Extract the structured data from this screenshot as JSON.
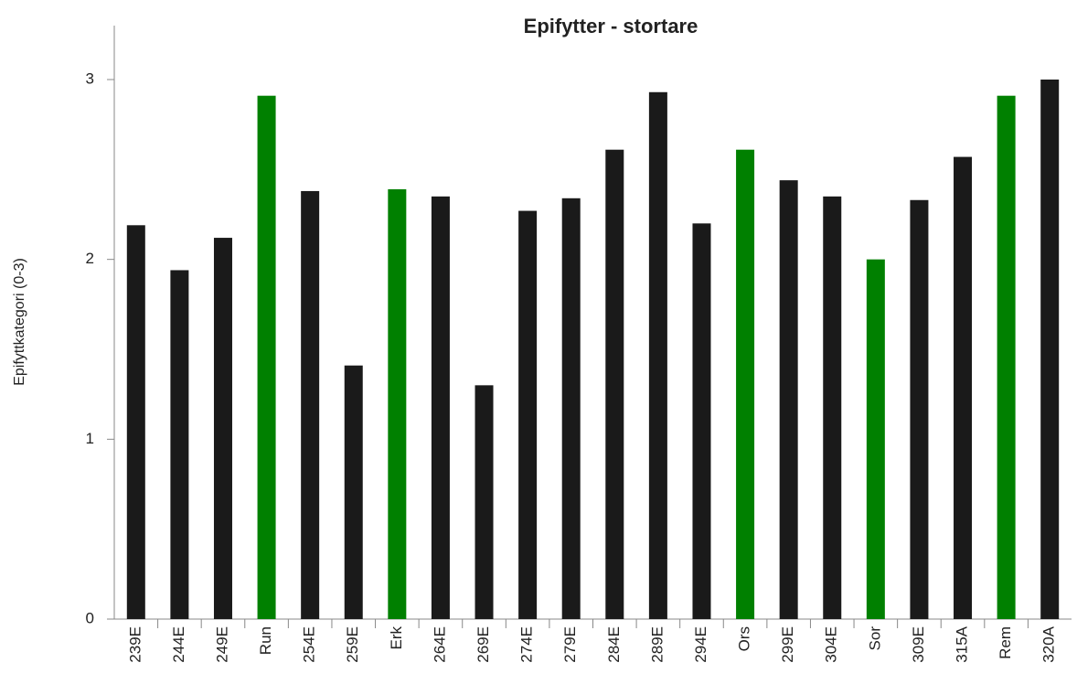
{
  "chart_data": {
    "type": "bar",
    "title": "Epifytter - stortare",
    "y_label": "Epifyttkategori  (0-3)",
    "categories": [
      "239E",
      "244E",
      "249E",
      "Run",
      "254E",
      "259E",
      "Erk",
      "264E",
      "269E",
      "274E",
      "279E",
      "284E",
      "289E",
      "294E",
      "Ors",
      "299E",
      "304E",
      "Sor",
      "309E",
      "315A",
      "Rem",
      "320A"
    ],
    "values": [
      2.19,
      1.94,
      2.12,
      2.91,
      2.38,
      1.41,
      2.39,
      2.35,
      1.3,
      2.27,
      2.34,
      2.61,
      2.93,
      2.2,
      2.61,
      2.44,
      2.35,
      2.0,
      2.33,
      2.57,
      2.91,
      3.0
    ],
    "colors": [
      "#1a1a1a",
      "#1a1a1a",
      "#1a1a1a",
      "#008000",
      "#1a1a1a",
      "#1a1a1a",
      "#008000",
      "#1a1a1a",
      "#1a1a1a",
      "#1a1a1a",
      "#1a1a1a",
      "#1a1a1a",
      "#1a1a1a",
      "#1a1a1a",
      "#008000",
      "#1a1a1a",
      "#1a1a1a",
      "#008000",
      "#1a1a1a",
      "#1a1a1a",
      "#008000",
      "#1a1a1a"
    ],
    "ylim": [
      0,
      3.3
    ],
    "yticks": [
      0,
      1,
      2,
      3
    ],
    "grid": false
  }
}
